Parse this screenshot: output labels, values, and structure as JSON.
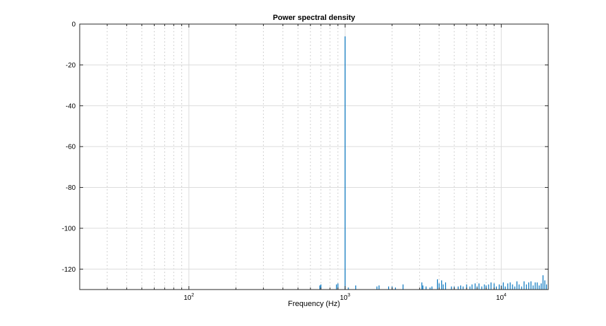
{
  "chart_data": {
    "type": "line",
    "title": "Power spectral density",
    "xlabel": "Frequency (Hz)",
    "ylabel": "",
    "xscale": "log",
    "xlim": [
      20,
      20000
    ],
    "ylim": [
      -130,
      0
    ],
    "grid": true,
    "legend": "none",
    "x_ticks": [
      {
        "base": "10",
        "exp": "2",
        "value": 100
      },
      {
        "base": "10",
        "exp": "3",
        "value": 1000
      },
      {
        "base": "10",
        "exp": "4",
        "value": 10000
      }
    ],
    "y_ticks": [
      "0",
      "-20",
      "-40",
      "-60",
      "-80",
      "-100",
      "-120"
    ],
    "y_tick_values": [
      0,
      -20,
      -40,
      -60,
      -80,
      -100,
      -120
    ],
    "series": [
      {
        "color": "#0072bd",
        "x": [
          690,
          700,
          880,
          900,
          1000,
          1050,
          1170,
          1600,
          1650,
          1900,
          2000,
          2100,
          2350,
          3100,
          3150,
          3300,
          3500,
          3600,
          3900,
          4000,
          4150,
          4250,
          4400,
          4800,
          5000,
          5300,
          5500,
          5700,
          6000,
          6300,
          6500,
          6800,
          7000,
          7200,
          7500,
          7800,
          8000,
          8300,
          8600,
          9000,
          9300,
          9700,
          10000,
          10300,
          10600,
          11000,
          11400,
          11800,
          12200,
          12600,
          13000,
          13500,
          14000,
          14500,
          15000,
          15500,
          16000,
          16500,
          17000,
          17500,
          18000,
          18500,
          19000,
          19500
        ],
        "y": [
          -128,
          -127.5,
          -127.5,
          -127,
          -6,
          -129,
          -128,
          -128.5,
          -128,
          -128.5,
          -128.5,
          -129,
          -127.5,
          -126.5,
          -128,
          -128.5,
          -129,
          -128.5,
          -125,
          -127,
          -125.5,
          -127.5,
          -126.5,
          -128.5,
          -128.5,
          -128.5,
          -128,
          -128.5,
          -127.5,
          -128.5,
          -127.5,
          -127,
          -128.5,
          -127,
          -128.5,
          -127.5,
          -128,
          -127.5,
          -126.5,
          -127,
          -128.5,
          -127.5,
          -128,
          -126.5,
          -128.5,
          -127,
          -126.5,
          -127.5,
          -128.5,
          -126,
          -127.5,
          -128.5,
          -126,
          -127.5,
          -126.5,
          -126,
          -128,
          -126.5,
          -126.5,
          -128,
          -127,
          -123,
          -125.5,
          -127.5
        ]
      }
    ]
  }
}
